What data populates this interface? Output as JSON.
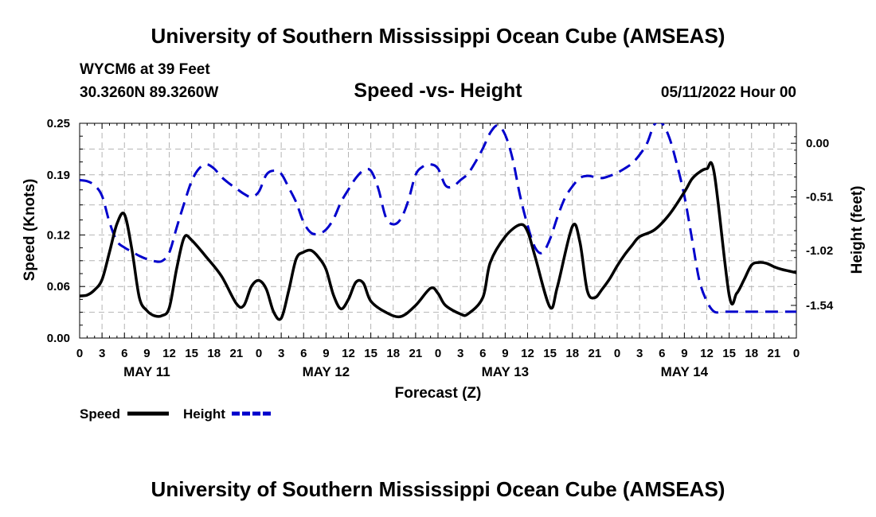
{
  "header": {
    "title": "University of Southern Mississippi Ocean Cube (AMSEAS)",
    "station": "WYCM6 at 39 Feet",
    "coords": "30.3260N  89.3260W",
    "datetime": "05/11/2022 Hour 00"
  },
  "footer": {
    "title": "University of Southern Mississippi Ocean Cube (AMSEAS)"
  },
  "chart_data": {
    "type": "line",
    "title": "Speed -vs- Height",
    "xlabel": "Forecast (Z)",
    "ylabel": "Speed (Knots)",
    "y2label": "Height (feet)",
    "x_range": [
      0,
      96
    ],
    "ylim": [
      0,
      0.25
    ],
    "y2lim": [
      -1.85,
      0.19
    ],
    "yticks": [
      0.0,
      0.06,
      0.12,
      0.19,
      0.25
    ],
    "ytick_labels": [
      "0.00",
      "0.06",
      "0.12",
      "0.19",
      "0.25"
    ],
    "y2ticks": [
      0.0,
      -0.51,
      -1.02,
      -1.54
    ],
    "y2tick_labels": [
      "0.00",
      "-0.51",
      "-1.02",
      "-1.54"
    ],
    "xticks": [
      0,
      3,
      6,
      9,
      12,
      15,
      18,
      21,
      24,
      27,
      30,
      33,
      36,
      39,
      42,
      45,
      48,
      51,
      54,
      57,
      60,
      63,
      66,
      69,
      72,
      75,
      78,
      81,
      84,
      87,
      90,
      93,
      96
    ],
    "xtick_labels": [
      "0",
      "3",
      "6",
      "9",
      "12",
      "15",
      "18",
      "21",
      "0",
      "3",
      "6",
      "9",
      "12",
      "15",
      "18",
      "21",
      "0",
      "3",
      "6",
      "9",
      "12",
      "15",
      "18",
      "21",
      "0",
      "3",
      "6",
      "9",
      "12",
      "15",
      "18",
      "21",
      "0"
    ],
    "day_labels": [
      {
        "label": "MAY 11",
        "x": 9
      },
      {
        "label": "MAY 12",
        "x": 33
      },
      {
        "label": "MAY 13",
        "x": 57
      },
      {
        "label": "MAY 14",
        "x": 81
      }
    ],
    "legend": [
      {
        "name": "Speed",
        "color": "#000000",
        "dash": "solid"
      },
      {
        "name": "Height",
        "color": "#0000cc",
        "dash": "dashed"
      }
    ],
    "series": [
      {
        "name": "Speed",
        "axis": "left",
        "color": "#000000",
        "x": [
          0,
          1,
          2,
          3,
          4,
          5,
          6,
          7,
          8,
          9,
          10,
          11,
          12,
          13,
          14,
          15,
          17,
          19,
          21,
          22,
          23,
          24,
          25,
          26,
          27,
          28,
          29,
          30,
          31,
          32,
          33,
          34,
          35,
          36,
          37,
          38,
          39,
          41,
          43,
          45,
          47,
          48,
          49,
          51,
          52,
          54,
          55,
          57,
          59,
          60,
          61,
          63,
          64,
          66,
          67,
          68,
          69,
          70,
          71,
          72,
          73,
          74,
          75,
          77,
          79,
          81,
          82,
          83,
          84,
          85,
          87,
          88,
          89,
          90,
          91,
          92,
          93,
          94,
          95,
          96
        ],
        "values": [
          0.049,
          0.05,
          0.056,
          0.068,
          0.1,
          0.133,
          0.144,
          0.103,
          0.047,
          0.032,
          0.026,
          0.026,
          0.035,
          0.081,
          0.117,
          0.114,
          0.094,
          0.072,
          0.04,
          0.038,
          0.06,
          0.067,
          0.057,
          0.03,
          0.023,
          0.055,
          0.092,
          0.1,
          0.102,
          0.094,
          0.08,
          0.05,
          0.034,
          0.045,
          0.065,
          0.064,
          0.043,
          0.03,
          0.025,
          0.038,
          0.058,
          0.052,
          0.038,
          0.028,
          0.028,
          0.047,
          0.088,
          0.118,
          0.132,
          0.124,
          0.095,
          0.036,
          0.06,
          0.13,
          0.112,
          0.055,
          0.047,
          0.057,
          0.069,
          0.084,
          0.097,
          0.108,
          0.118,
          0.126,
          0.144,
          0.17,
          0.185,
          0.193,
          0.197,
          0.192,
          0.05,
          0.052,
          0.068,
          0.085,
          0.088,
          0.087,
          0.083,
          0.08,
          0.078,
          0.076
        ]
      },
      {
        "name": "Height",
        "axis": "right",
        "color": "#0000cc",
        "x": [
          0,
          1,
          2,
          3,
          4,
          5,
          6,
          7,
          8,
          9,
          10,
          11,
          12,
          13,
          14,
          15,
          16,
          17,
          18,
          19,
          20,
          21,
          22,
          23,
          24,
          25,
          26,
          27,
          28,
          29,
          30,
          31,
          32,
          33,
          34,
          35,
          36,
          37,
          38,
          39,
          40,
          41,
          42,
          43,
          44,
          45,
          46,
          47,
          48,
          49,
          50,
          51,
          52,
          53,
          54,
          55,
          56,
          57,
          58,
          59,
          60,
          61,
          62,
          63,
          64,
          65,
          66,
          67,
          68,
          69,
          70,
          71,
          72,
          73,
          74,
          75,
          76,
          77,
          78,
          79,
          80,
          81,
          82,
          83,
          84,
          85,
          86,
          87,
          88,
          89,
          90,
          91,
          92,
          93,
          94,
          95,
          96
        ],
        "values": [
          -0.35,
          -0.36,
          -0.4,
          -0.5,
          -0.75,
          -0.93,
          -0.99,
          -1.03,
          -1.07,
          -1.1,
          -1.12,
          -1.12,
          -1.04,
          -0.8,
          -0.57,
          -0.36,
          -0.24,
          -0.2,
          -0.24,
          -0.32,
          -0.38,
          -0.43,
          -0.48,
          -0.51,
          -0.46,
          -0.3,
          -0.26,
          -0.29,
          -0.42,
          -0.56,
          -0.75,
          -0.85,
          -0.86,
          -0.82,
          -0.72,
          -0.56,
          -0.44,
          -0.33,
          -0.26,
          -0.26,
          -0.43,
          -0.7,
          -0.77,
          -0.72,
          -0.55,
          -0.3,
          -0.22,
          -0.2,
          -0.24,
          -0.4,
          -0.41,
          -0.35,
          -0.29,
          -0.18,
          -0.05,
          0.1,
          0.17,
          0.08,
          -0.15,
          -0.5,
          -0.78,
          -0.99,
          -1.04,
          -0.91,
          -0.7,
          -0.52,
          -0.41,
          -0.33,
          -0.31,
          -0.32,
          -0.33,
          -0.31,
          -0.28,
          -0.24,
          -0.19,
          -0.11,
          0.0,
          0.18,
          0.19,
          0.05,
          -0.2,
          -0.5,
          -0.9,
          -1.3,
          -1.5,
          -1.6,
          -1.6,
          -1.6,
          -1.6,
          -1.6,
          -1.6,
          -1.6,
          -1.6,
          -1.6,
          -1.6,
          -1.6,
          -1.6
        ]
      }
    ]
  }
}
